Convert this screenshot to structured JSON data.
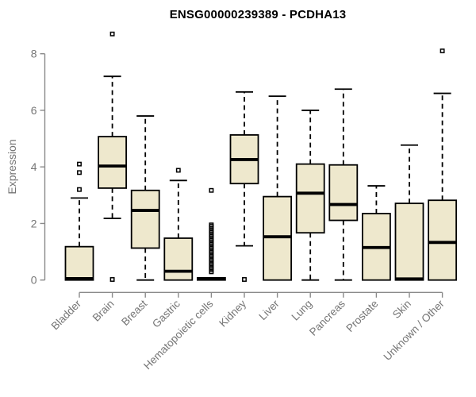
{
  "chart_data": {
    "type": "boxplot",
    "title": "ENSG00000239389 - PCDHA13",
    "ylabel": "Expression",
    "xlabel": "",
    "ylim": [
      0,
      8.8
    ],
    "yticks": [
      0,
      2,
      4,
      6,
      8
    ],
    "grid": false,
    "legend": false,
    "colors": {
      "box_fill": "#EEE8CD",
      "box_border": "#000000",
      "median": "#000000",
      "whisker": "#000000",
      "axis_line": "#8a8a8a",
      "axis_text": "#757575",
      "title_text": "#000000",
      "background": "#ffffff"
    },
    "categories": [
      "Bladder",
      "Brain",
      "Breast",
      "Gastric",
      "Hematopoietic cells",
      "Kidney",
      "Liver",
      "Lung",
      "Pancreas",
      "Prostate",
      "Skin",
      "Unknown / Other"
    ],
    "boxes": [
      {
        "label": "Bladder",
        "whislo": 0,
        "q1": 0,
        "med": 0.05,
        "q3": 1.18,
        "whishi": 2.9,
        "outliers": [
          3.2,
          3.8,
          4.1
        ]
      },
      {
        "label": "Brain",
        "whislo": 2.18,
        "q1": 3.25,
        "med": 4.03,
        "q3": 5.07,
        "whishi": 7.2,
        "outliers": [
          8.7,
          0.02
        ]
      },
      {
        "label": "Breast",
        "whislo": 0,
        "q1": 1.13,
        "med": 2.46,
        "q3": 3.17,
        "whishi": 5.8,
        "outliers": []
      },
      {
        "label": "Gastric",
        "whislo": 0,
        "q1": 0,
        "med": 0.31,
        "q3": 1.48,
        "whishi": 3.52,
        "outliers": [
          3.88
        ]
      },
      {
        "label": "Hematopoietic cells",
        "whislo": 0,
        "q1": 0,
        "med": 0.04,
        "q3": 0.08,
        "whishi": 0.08,
        "outliers": [
          3.17,
          0.29,
          0.36,
          0.43,
          0.5,
          0.57,
          0.64,
          0.71,
          0.78,
          0.85,
          0.92,
          0.99,
          1.06,
          1.13,
          1.2,
          1.27,
          1.34,
          1.41,
          1.48,
          1.55,
          1.62,
          1.69,
          1.76,
          1.83,
          1.9,
          1.95
        ]
      },
      {
        "label": "Kidney",
        "whislo": 1.21,
        "q1": 3.41,
        "med": 4.26,
        "q3": 5.13,
        "whishi": 6.65,
        "outliers": [
          0.02
        ]
      },
      {
        "label": "Liver",
        "whislo": 0,
        "q1": 0,
        "med": 1.53,
        "q3": 2.95,
        "whishi": 6.5,
        "outliers": []
      },
      {
        "label": "Lung",
        "whislo": 0,
        "q1": 1.67,
        "med": 3.07,
        "q3": 4.1,
        "whishi": 6.0,
        "outliers": []
      },
      {
        "label": "Pancreas",
        "whislo": 0,
        "q1": 2.11,
        "med": 2.67,
        "q3": 4.07,
        "whishi": 6.75,
        "outliers": []
      },
      {
        "label": "Prostate",
        "whislo": 0,
        "q1": 0,
        "med": 1.15,
        "q3": 2.35,
        "whishi": 3.33,
        "outliers": []
      },
      {
        "label": "Skin",
        "whislo": 0,
        "q1": 0,
        "med": 0.04,
        "q3": 2.71,
        "whishi": 4.77,
        "outliers": []
      },
      {
        "label": "Unknown / Other",
        "whislo": 0,
        "q1": 0,
        "med": 1.33,
        "q3": 2.82,
        "whishi": 6.6,
        "outliers": [
          8.1
        ]
      }
    ]
  }
}
